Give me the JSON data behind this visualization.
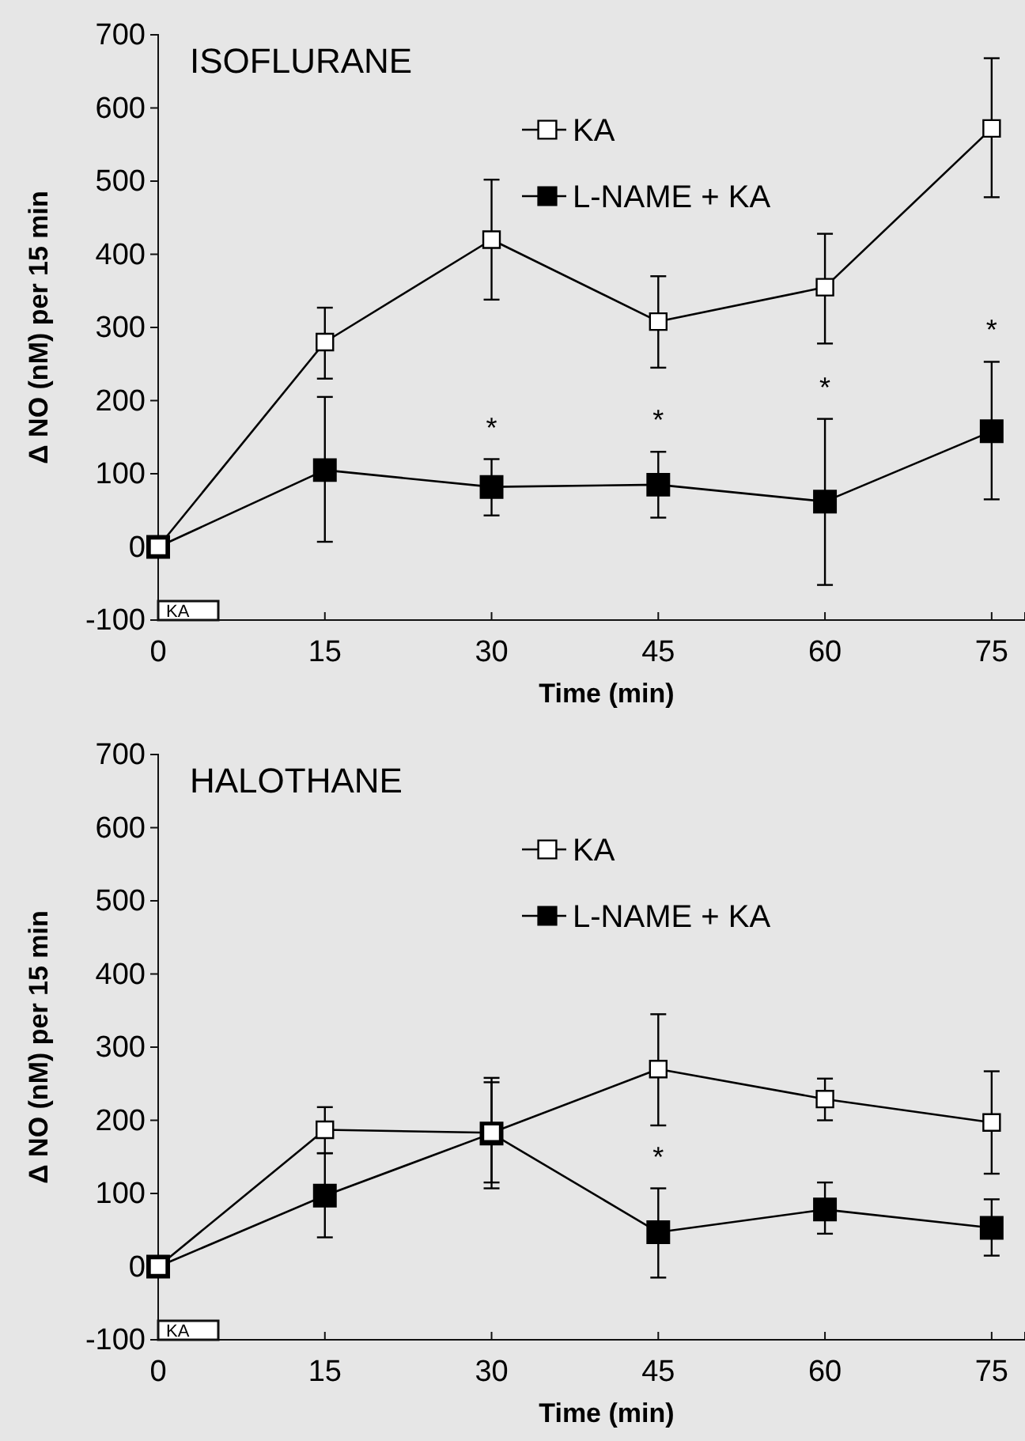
{
  "chart_data": [
    {
      "type": "line",
      "title": "ISOFLURANE",
      "xlabel": "Time (min)",
      "ylabel": "Δ NO (nM) per 15 min",
      "x": [
        0,
        15,
        30,
        45,
        60,
        75
      ],
      "xlim": [
        0,
        78
      ],
      "xticks": [
        0,
        15,
        30,
        45,
        60,
        75
      ],
      "ylim": [
        -100,
        700
      ],
      "yticks": [
        -100,
        0,
        100,
        200,
        300,
        400,
        500,
        600,
        700
      ],
      "marker": "square",
      "legend": "top",
      "grid": false,
      "series": [
        {
          "name": "KA",
          "color": "#000000",
          "values": [
            0,
            280,
            420,
            308,
            355,
            572
          ],
          "errors": [
            null,
            [
              230,
              327
            ],
            [
              338,
              502
            ],
            [
              245,
              370
            ],
            [
              278,
              428
            ],
            [
              478,
              668
            ]
          ]
        },
        {
          "name": "L-NAME + KA",
          "color": "#000000",
          "values": [
            0,
            105,
            82,
            85,
            62,
            158
          ],
          "errors": [
            null,
            [
              7,
              205
            ],
            [
              43,
              120
            ],
            [
              40,
              130
            ],
            [
              -52,
              175
            ],
            [
              65,
              253
            ]
          ]
        }
      ],
      "annotations": [
        "KA",
        {
          "text": "*",
          "x": 30,
          "y": 120
        },
        {
          "text": "*",
          "x": 45,
          "y": 130
        },
        {
          "text": "*",
          "x": 60,
          "y": 175
        },
        {
          "text": "*",
          "x": 75,
          "y": 253
        }
      ]
    },
    {
      "type": "line",
      "title": "HALOTHANE",
      "xlabel": "Time (min)",
      "ylabel": "Δ NO (nM) per 15 min",
      "x": [
        0,
        15,
        30,
        45,
        60,
        75
      ],
      "xlim": [
        0,
        78
      ],
      "xticks": [
        0,
        15,
        30,
        45,
        60,
        75
      ],
      "ylim": [
        -100,
        700
      ],
      "yticks": [
        -100,
        0,
        100,
        200,
        300,
        400,
        500,
        600,
        700
      ],
      "marker": "square",
      "legend": "top",
      "grid": false,
      "series": [
        {
          "name": "KA",
          "color": "#000000",
          "values": [
            0,
            187,
            183,
            270,
            229,
            197
          ],
          "errors": [
            null,
            [
              155,
              218
            ],
            [
              115,
              258
            ],
            [
              193,
              345
            ],
            [
              200,
              257
            ],
            [
              127,
              267
            ]
          ]
        },
        {
          "name": "L-NAME + KA",
          "color": "#000000",
          "values": [
            0,
            97,
            182,
            47,
            78,
            53
          ],
          "errors": [
            null,
            [
              40,
              155
            ],
            [
              107,
              252
            ],
            [
              -15,
              107
            ],
            [
              45,
              115
            ],
            [
              15,
              92
            ]
          ]
        }
      ],
      "annotations": [
        "KA",
        {
          "text": "*",
          "x": 45,
          "y": 107
        }
      ]
    }
  ]
}
